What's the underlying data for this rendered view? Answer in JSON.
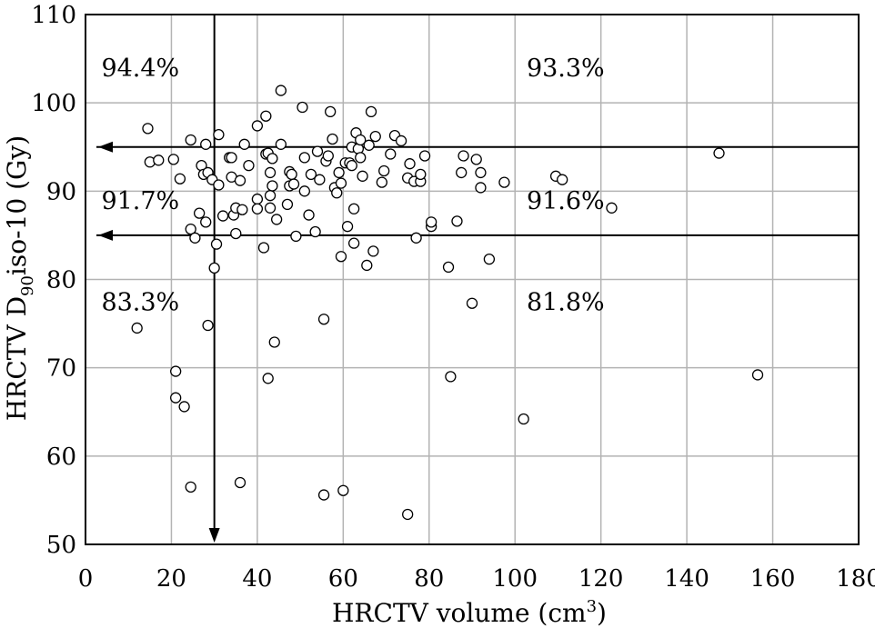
{
  "chart_data": {
    "type": "scatter",
    "xlabel": "HRCTV volume (cm",
    "xlabel_sup": "3",
    "xlabel_end": ")",
    "ylabel": "HRCTV D",
    "ylabel_sub": "90",
    "ylabel_end": "iso-10 (Gy)",
    "xlim": [
      0,
      180
    ],
    "ylim": [
      50,
      110
    ],
    "xticks": [
      "0",
      "20",
      "40",
      "60",
      "80",
      "100",
      "120",
      "140",
      "160",
      "180"
    ],
    "yticks": [
      "50",
      "60",
      "70",
      "80",
      "90",
      "100",
      "110"
    ],
    "grid": true,
    "reference_lines": {
      "horizontal": [
        95,
        85
      ],
      "vertical": [
        30
      ]
    },
    "annotations": [
      {
        "text": "94.4%",
        "x": 2,
        "y": 103
      },
      {
        "text": "93.3%",
        "x": 101,
        "y": 103
      },
      {
        "text": "91.7%",
        "x": 2,
        "y": 88
      },
      {
        "text": "91.6%",
        "x": 101,
        "y": 88
      },
      {
        "text": "83.3%",
        "x": 2,
        "y": 76.5
      },
      {
        "text": "81.8%",
        "x": 101,
        "y": 76.5
      }
    ],
    "points": [
      [
        14.5,
        97.1
      ],
      [
        15,
        93.3
      ],
      [
        17,
        93.5
      ],
      [
        12,
        74.5
      ],
      [
        20.5,
        93.6
      ],
      [
        22,
        91.4
      ],
      [
        21,
        69.6
      ],
      [
        21,
        66.6
      ],
      [
        23,
        65.6
      ],
      [
        24.5,
        56.5
      ],
      [
        24.5,
        95.8
      ],
      [
        24.5,
        85.7
      ],
      [
        25.5,
        84.7
      ],
      [
        26.5,
        87.5
      ],
      [
        27,
        92.9
      ],
      [
        27.5,
        91.9
      ],
      [
        28,
        86.5
      ],
      [
        28,
        95.3
      ],
      [
        28.5,
        92.1
      ],
      [
        28.5,
        74.8
      ],
      [
        29.5,
        91.3
      ],
      [
        30,
        81.3
      ],
      [
        30.5,
        84
      ],
      [
        31,
        90.7
      ],
      [
        31,
        96.4
      ],
      [
        32,
        87.2
      ],
      [
        33.5,
        93.8
      ],
      [
        34,
        93.8
      ],
      [
        34,
        91.6
      ],
      [
        34.5,
        87.3
      ],
      [
        35,
        88.1
      ],
      [
        35,
        85.2
      ],
      [
        36,
        91.2
      ],
      [
        36,
        57
      ],
      [
        36.5,
        87.9
      ],
      [
        37,
        95.3
      ],
      [
        38,
        92.9
      ],
      [
        40,
        97.4
      ],
      [
        40,
        89.1
      ],
      [
        40,
        88
      ],
      [
        41.5,
        83.6
      ],
      [
        42,
        94.2
      ],
      [
        42,
        98.5
      ],
      [
        42.5,
        94.3
      ],
      [
        42.5,
        68.8
      ],
      [
        43,
        89.5
      ],
      [
        43,
        88.1
      ],
      [
        43,
        92.1
      ],
      [
        43.5,
        93.7
      ],
      [
        43.5,
        90.6
      ],
      [
        44,
        72.9
      ],
      [
        44.5,
        86.8
      ],
      [
        45.5,
        95.3
      ],
      [
        45.5,
        101.4
      ],
      [
        47,
        88.5
      ],
      [
        47.5,
        92.2
      ],
      [
        47.5,
        90.6
      ],
      [
        48,
        91.9
      ],
      [
        48.5,
        90.8
      ],
      [
        49,
        84.9
      ],
      [
        50.5,
        99.5
      ],
      [
        51,
        93.8
      ],
      [
        51,
        90
      ],
      [
        52,
        87.3
      ],
      [
        52.5,
        91.9
      ],
      [
        53.5,
        85.4
      ],
      [
        54,
        94.5
      ],
      [
        54.5,
        91.3
      ],
      [
        55.5,
        75.5
      ],
      [
        55.5,
        55.6
      ],
      [
        56,
        93.4
      ],
      [
        56.5,
        94
      ],
      [
        57,
        99
      ],
      [
        57.5,
        95.9
      ],
      [
        58,
        90.4
      ],
      [
        58.5,
        89.8
      ],
      [
        59,
        92.1
      ],
      [
        59.5,
        82.6
      ],
      [
        59.5,
        90.9
      ],
      [
        60,
        56.1
      ],
      [
        60.5,
        93.2
      ],
      [
        61,
        86
      ],
      [
        61.5,
        93.2
      ],
      [
        62,
        95
      ],
      [
        62,
        92.9
      ],
      [
        62.5,
        88
      ],
      [
        62.5,
        84.1
      ],
      [
        63,
        96.6
      ],
      [
        63.5,
        94.8
      ],
      [
        64,
        95.8
      ],
      [
        64,
        93.8
      ],
      [
        64.5,
        91.7
      ],
      [
        65.5,
        81.6
      ],
      [
        66,
        95.2
      ],
      [
        66.5,
        99
      ],
      [
        67,
        83.2
      ],
      [
        67.5,
        96.2
      ],
      [
        69,
        91
      ],
      [
        69.5,
        92.3
      ],
      [
        71,
        94.2
      ],
      [
        72,
        96.3
      ],
      [
        73.5,
        95.7
      ],
      [
        75,
        91.5
      ],
      [
        75,
        53.4
      ],
      [
        75.5,
        93.1
      ],
      [
        76.5,
        91.1
      ],
      [
        77,
        84.7
      ],
      [
        78,
        91.1
      ],
      [
        78,
        91.9
      ],
      [
        79,
        94
      ],
      [
        80.5,
        86
      ],
      [
        80.5,
        86.5
      ],
      [
        84.5,
        81.4
      ],
      [
        85,
        69
      ],
      [
        86.5,
        86.6
      ],
      [
        87.5,
        92.1
      ],
      [
        88,
        94
      ],
      [
        90,
        77.3
      ],
      [
        91,
        93.6
      ],
      [
        92,
        92.1
      ],
      [
        92,
        90.4
      ],
      [
        94,
        82.3
      ],
      [
        97.5,
        91
      ],
      [
        102,
        64.2
      ],
      [
        109.5,
        91.7
      ],
      [
        111,
        91.3
      ],
      [
        122.5,
        88.1
      ],
      [
        147.5,
        94.3
      ],
      [
        156.5,
        69.2
      ]
    ]
  }
}
